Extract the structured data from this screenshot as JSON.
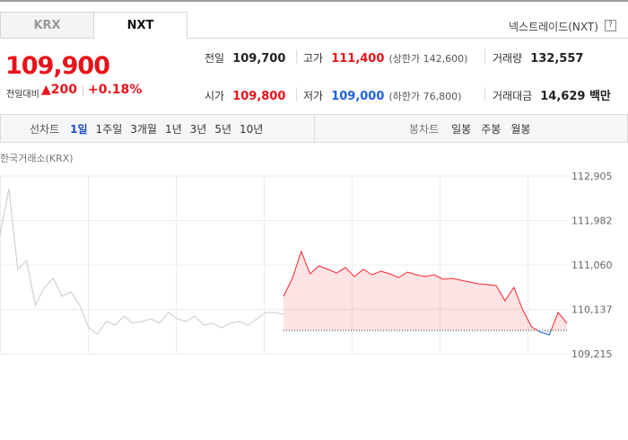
{
  "tabs": [
    "KRX",
    "NXT"
  ],
  "market_name": "넥스트레이드(NXT)",
  "help": "?",
  "price": {
    "current": "109,900",
    "change_label": "전일대비",
    "change": "▲200",
    "change_pct": "+0.18%"
  },
  "info": [
    {
      "label": "전일",
      "value": "109,700"
    },
    {
      "label": "고가",
      "value": "111,400",
      "note": "(상한가 142,600)"
    },
    {
      "label": "거래량",
      "value": "132,557"
    },
    {
      "label": "시가",
      "value": "109,800"
    },
    {
      "label": "저가",
      "value": "109,000",
      "note": "(하한가 76,800)"
    },
    {
      "label": "거래대금",
      "value": "14,629 백만"
    }
  ],
  "toolbar": {
    "line_label": "선차트",
    "periods": [
      "1일",
      "1주일",
      "3개월",
      "1년",
      "3년",
      "5년",
      "10년"
    ],
    "candle_label": "봉차트",
    "candle_periods": [
      "일봉",
      "주봉",
      "월봉"
    ]
  },
  "chart_data": {
    "type": "line",
    "source": "한국거래소(KRX)",
    "ylim": [
      109215,
      112905
    ],
    "yticks": [
      {
        "value": 112905,
        "label": "112,905"
      },
      {
        "value": 111982,
        "label": "111,982"
      },
      {
        "value": 111060,
        "label": "111,060"
      },
      {
        "value": 110137,
        "label": "110,137"
      },
      {
        "value": 109215,
        "label": "109,215"
      }
    ],
    "baseline": 109700,
    "up_color": "#f4272f",
    "down_color": "#2f6fd6",
    "grid": true,
    "series": [
      {
        "color": "#c9c9c9",
        "values": [
          111675,
          112644,
          110967,
          111153,
          110221,
          110594,
          110780,
          110408,
          110501,
          110221,
          109756,
          109625,
          109886,
          109812,
          109998,
          109849,
          109886,
          109942,
          109849,
          110072,
          109942,
          109886,
          109998,
          109812,
          109849,
          109756,
          109849,
          109886,
          109812,
          109942,
          110072,
          110072,
          110035,
          null,
          null,
          null,
          null,
          null,
          null,
          null,
          null,
          null,
          null,
          null,
          null,
          null,
          null,
          null,
          null,
          null,
          null,
          null,
          null,
          null,
          null,
          null,
          null,
          null,
          null,
          null,
          null,
          null,
          null,
          null,
          null
        ]
      },
      {
        "color": "#f4272f",
        "values": [
          null,
          null,
          null,
          null,
          null,
          null,
          null,
          null,
          null,
          null,
          null,
          null,
          null,
          null,
          null,
          null,
          null,
          null,
          null,
          null,
          null,
          null,
          null,
          null,
          null,
          null,
          null,
          null,
          null,
          null,
          null,
          null,
          110408,
          110780,
          111339,
          110874,
          111041,
          110967,
          110892,
          111004,
          110817,
          110967,
          110855,
          110930,
          110874,
          110799,
          110911,
          110855,
          110817,
          110855,
          110762,
          110780,
          110743,
          110706,
          110668,
          110650,
          110631,
          110315,
          110594,
          110128,
          109774,
          109662,
          109606,
          110072,
          109849
        ]
      }
    ]
  }
}
